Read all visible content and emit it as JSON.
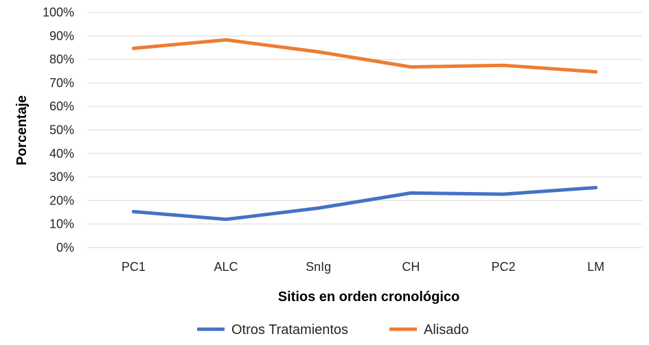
{
  "chart_data": {
    "type": "line",
    "categories": [
      "PC1",
      "ALC",
      "SnIg",
      "CH",
      "PC2",
      "LM"
    ],
    "series": [
      {
        "name": "Otros Tratamientos",
        "values": [
          15.3,
          12.0,
          16.8,
          23.2,
          22.7,
          25.5
        ],
        "color": "#4472C4"
      },
      {
        "name": "Alisado",
        "values": [
          84.7,
          88.3,
          83.2,
          76.8,
          77.5,
          74.7
        ],
        "color": "#ED7D31"
      }
    ],
    "xlabel": "Sitios en orden cronológico",
    "ylabel": "Porcentaje",
    "ylim": [
      0,
      100
    ],
    "yticks": [
      "0%",
      "10%",
      "20%",
      "30%",
      "40%",
      "50%",
      "60%",
      "70%",
      "80%",
      "90%",
      "100%"
    ],
    "grid": true,
    "legend_position": "bottom"
  }
}
